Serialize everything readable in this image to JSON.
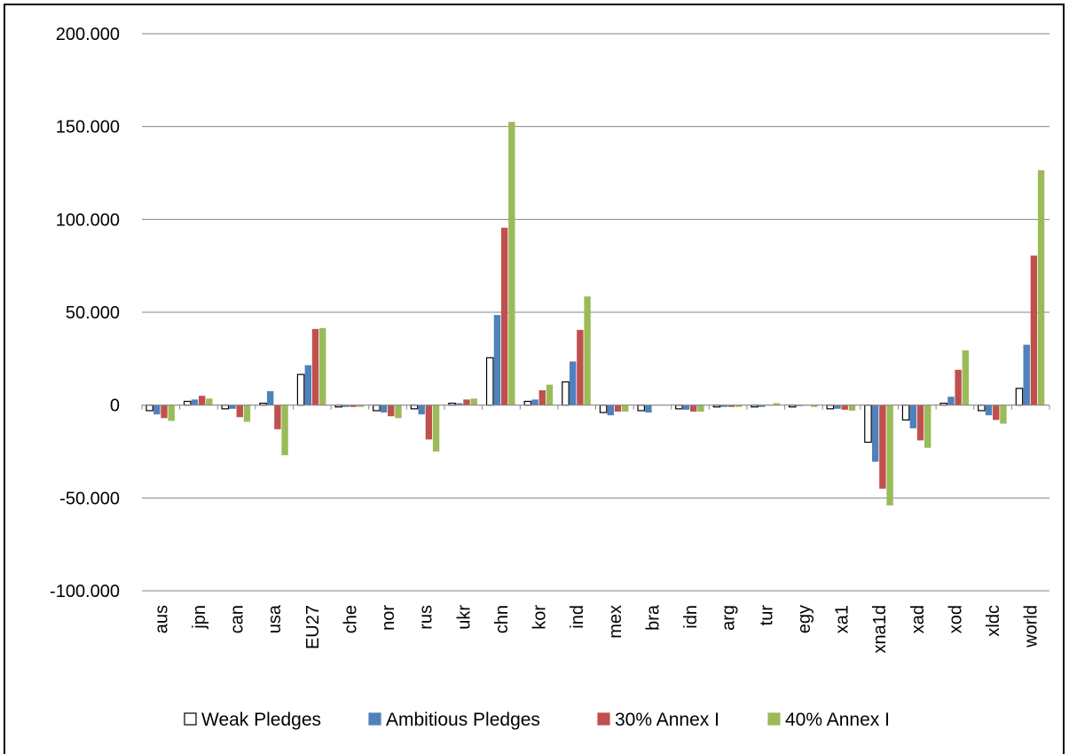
{
  "chart_data": {
    "type": "bar",
    "categories": [
      "aus",
      "jpn",
      "can",
      "usa",
      "EU27",
      "che",
      "nor",
      "rus",
      "ukr",
      "chn",
      "kor",
      "ind",
      "mex",
      "bra",
      "idn",
      "arg",
      "tur",
      "egy",
      "xa1",
      "xna1d",
      "xad",
      "xod",
      "xldc",
      "world"
    ],
    "series": [
      {
        "name": "Weak Pledges",
        "color": "#ffffff",
        "stroke": "#000000",
        "values": [
          -3,
          2,
          -2,
          1,
          16.5,
          -1,
          -3,
          -2,
          1,
          25.5,
          2,
          12.5,
          -4,
          -3,
          -2,
          -1,
          -1,
          -1,
          -2,
          -20,
          -8,
          1,
          -3,
          9
        ]
      },
      {
        "name": "Ambitious Pledges",
        "color": "#4f81bd",
        "stroke": "#4f81bd",
        "values": [
          -5,
          3,
          -2,
          7.5,
          21.5,
          -1,
          -4,
          -5,
          1,
          48.5,
          3,
          23.5,
          -5.5,
          -4,
          -2.5,
          -1,
          -1,
          -0.5,
          -2,
          -30.5,
          -12.5,
          4.5,
          -5.5,
          32.5
        ]
      },
      {
        "name": "30% Annex I",
        "color": "#c0504d",
        "stroke": "#c0504d",
        "values": [
          -7,
          5,
          -6.5,
          -13,
          41,
          -1,
          -6,
          -18.5,
          3,
          95.5,
          8,
          40.5,
          -3.5,
          0,
          -3.5,
          -1,
          0,
          0,
          -2.5,
          -45,
          -19,
          19,
          -8,
          80.5
        ]
      },
      {
        "name": "40% Annex I",
        "color": "#9bbb59",
        "stroke": "#9bbb59",
        "values": [
          -8.5,
          3.5,
          -9,
          -27,
          41.5,
          -1,
          -7,
          -25,
          3.5,
          152.5,
          11,
          58.5,
          -3.5,
          0,
          -3.5,
          -1,
          1,
          -1,
          -3,
          -54,
          -23,
          29.5,
          -10,
          126.5
        ]
      }
    ],
    "yticks": [
      "200.000",
      "150.000",
      "100.000",
      "50.000",
      "0",
      "-50.000",
      "-100.000"
    ],
    "ylim": [
      -100,
      200
    ],
    "xlabel": "",
    "ylabel": "",
    "title": "",
    "grid": true,
    "legend_position": "bottom"
  }
}
